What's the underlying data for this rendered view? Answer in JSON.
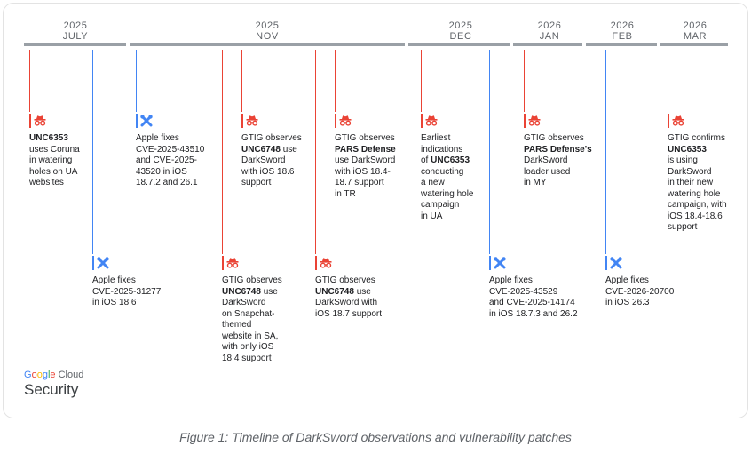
{
  "months": [
    {
      "year": "2025",
      "name": "JULY"
    },
    {
      "year": "2025",
      "name": "NOV"
    },
    {
      "year": "2025",
      "name": "DEC"
    },
    {
      "year": "2026",
      "name": "JAN"
    },
    {
      "year": "2026",
      "name": "FEB"
    },
    {
      "year": "2026",
      "name": "MAR"
    }
  ],
  "colors": {
    "threat": "#ea4335",
    "patch": "#4285f4",
    "axis": "#9aa0a6"
  },
  "icons": {
    "threat": "spy-icon",
    "patch": "wrench-screwdriver-icon"
  },
  "events": [
    {
      "id": "e1",
      "type": "threat",
      "lines": [
        [
          "UNC6353"
        ],
        [
          "uses Coruna"
        ],
        [
          "in watering"
        ],
        [
          "holes on UA"
        ],
        [
          "websites"
        ]
      ]
    },
    {
      "id": "e2",
      "type": "patch",
      "lines": [
        [
          "Apple fixes"
        ],
        [
          "CVE-2025-31277"
        ],
        [
          "in iOS 18.6"
        ]
      ]
    },
    {
      "id": "e3",
      "type": "patch",
      "lines": [
        [
          "Apple fixes"
        ],
        [
          "CVE-2025-43510"
        ],
        [
          "and CVE-2025-"
        ],
        [
          "43520 in iOS"
        ],
        [
          "18.7.2 and 26.1"
        ]
      ]
    },
    {
      "id": "e4",
      "type": "threat",
      "lines": [
        [
          "GTIG observes"
        ],
        [
          "UNC6748",
          " use"
        ],
        [
          "DarkSword"
        ],
        [
          "on Snapchat-"
        ],
        [
          "themed"
        ],
        [
          "website in SA,"
        ],
        [
          "with only iOS"
        ],
        [
          "18.4 support"
        ]
      ]
    },
    {
      "id": "e5",
      "type": "threat",
      "lines": [
        [
          "GTIG observes"
        ],
        [
          "UNC6748",
          " use"
        ],
        [
          "DarkSword"
        ],
        [
          "with iOS 18.6"
        ],
        [
          "support"
        ]
      ]
    },
    {
      "id": "e6",
      "type": "threat",
      "lines": [
        [
          "GTIG observes"
        ],
        [
          "UNC6748",
          " use"
        ],
        [
          "DarkSword with"
        ],
        [
          "iOS 18.7 support"
        ]
      ]
    },
    {
      "id": "e7",
      "type": "threat",
      "lines": [
        [
          "GTIG observes"
        ],
        [
          "PARS Defense"
        ],
        [
          "use DarkSword"
        ],
        [
          "with iOS 18.4-"
        ],
        [
          "18.7 support"
        ],
        [
          "in TR"
        ]
      ]
    },
    {
      "id": "e8",
      "type": "threat",
      "lines": [
        [
          "Earliest"
        ],
        [
          "indications"
        ],
        [
          "of ",
          "UNC6353"
        ],
        [
          "conducting"
        ],
        [
          "a new"
        ],
        [
          "watering hole"
        ],
        [
          "campaign"
        ],
        [
          "in UA"
        ]
      ]
    },
    {
      "id": "e9",
      "type": "patch",
      "lines": [
        [
          "Apple fixes"
        ],
        [
          "CVE-2025-43529"
        ],
        [
          "and CVE-2025-14174"
        ],
        [
          "in iOS 18.7.3 and 26.2"
        ]
      ]
    },
    {
      "id": "e10",
      "type": "threat",
      "lines": [
        [
          "GTIG observes"
        ],
        [
          "PARS Defense's"
        ],
        [
          "DarkSword"
        ],
        [
          "loader used"
        ],
        [
          "in MY"
        ]
      ]
    },
    {
      "id": "e11",
      "type": "patch",
      "lines": [
        [
          "Apple fixes"
        ],
        [
          "CVE-2026-20700"
        ],
        [
          "in iOS 26.3"
        ]
      ]
    },
    {
      "id": "e12",
      "type": "threat",
      "lines": [
        [
          "GTIG confirms"
        ],
        [
          "UNC6353"
        ],
        [
          "is using"
        ],
        [
          "DarkSword"
        ],
        [
          "in their new"
        ],
        [
          "watering hole"
        ],
        [
          "campaign, with"
        ],
        [
          "iOS 18.4-18.6"
        ],
        [
          "support"
        ]
      ]
    }
  ],
  "logo": {
    "brand": "Google Cloud",
    "brand_letters": [
      "G",
      "o",
      "o",
      "g",
      "l",
      "e"
    ],
    "brand_rest": " Cloud",
    "product": "Security"
  },
  "caption": "Figure 1: Timeline of DarkSword observations and vulnerability patches"
}
